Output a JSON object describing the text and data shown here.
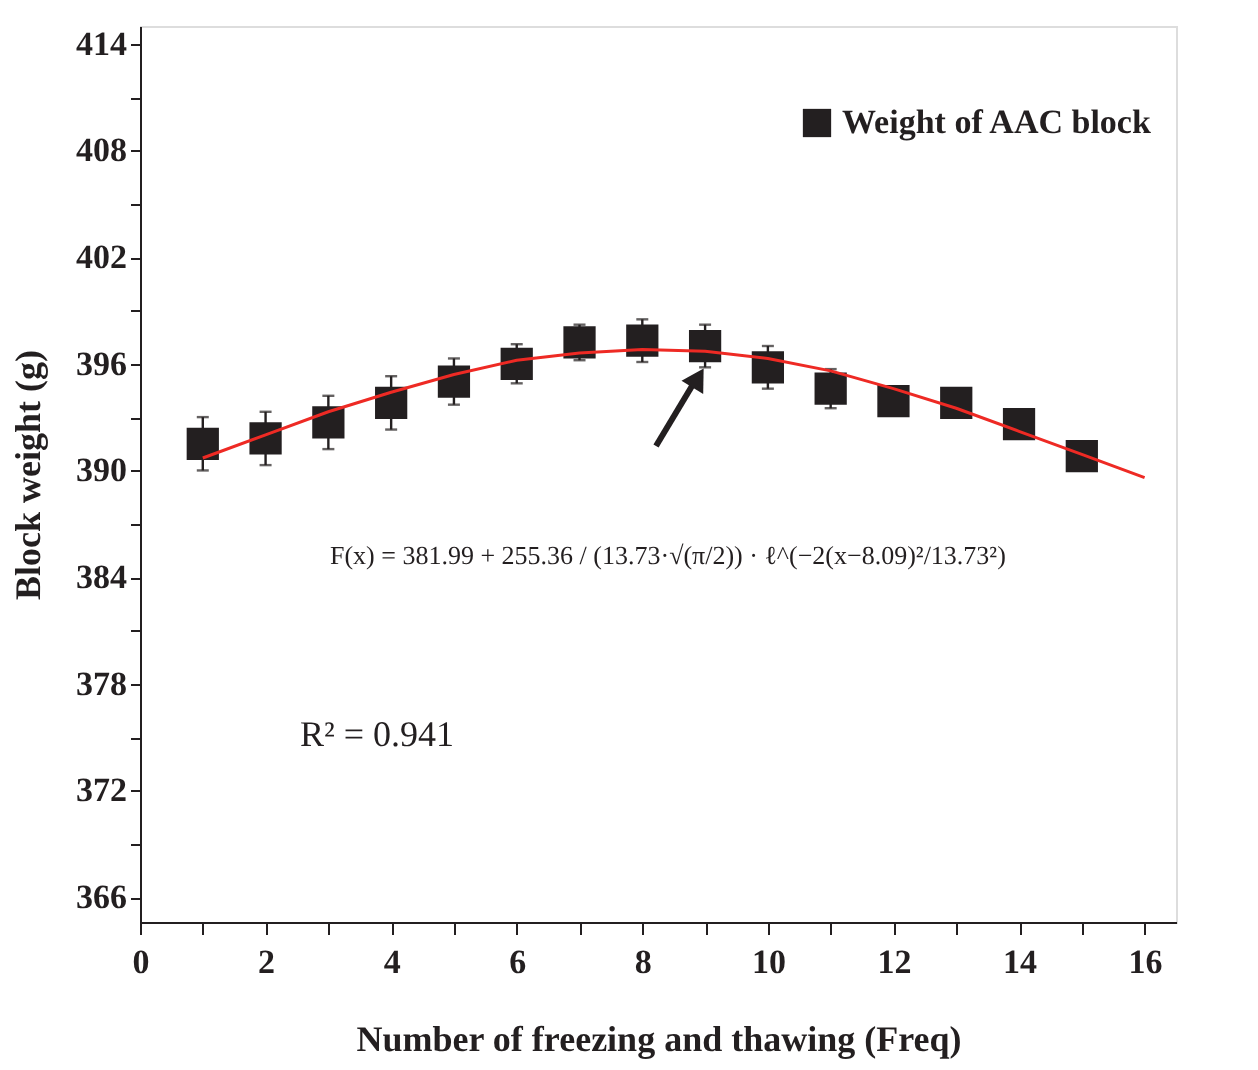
{
  "chart_data": {
    "type": "scatter",
    "xlabel": "Number of freezing and thawing (Freq)",
    "ylabel": "Block weight (g)",
    "xlim": [
      0,
      16.5
    ],
    "ylim": [
      364.6,
      415
    ],
    "xticks": [
      0,
      {
        "value": 1,
        "label": null
      },
      2,
      {
        "value": 3,
        "label": null
      },
      4,
      {
        "value": 5,
        "label": null
      },
      6,
      {
        "value": 7,
        "label": null
      },
      8,
      {
        "value": 9,
        "label": null
      },
      10,
      {
        "value": 11,
        "label": null
      },
      12,
      {
        "value": 13,
        "label": null
      },
      14,
      {
        "value": 15,
        "label": null
      },
      16
    ],
    "yticks": [
      366,
      {
        "value": 369,
        "label": null
      },
      372,
      {
        "value": 375,
        "label": null
      },
      378,
      {
        "value": 381,
        "label": null
      },
      384,
      {
        "value": 387,
        "label": null
      },
      390,
      {
        "value": 393,
        "label": null
      },
      396,
      {
        "value": 399,
        "label": null
      },
      402,
      {
        "value": 405,
        "label": null
      },
      408,
      {
        "value": 411,
        "label": null
      },
      414
    ],
    "marker": "square",
    "legend": "top right",
    "grid": false,
    "series": [
      {
        "name": "Weight of AAC block",
        "color": "#231f20",
        "x": [
          1,
          2,
          3,
          4,
          5,
          6,
          7,
          8,
          9,
          10,
          11,
          12,
          13,
          14,
          15
        ],
        "values": [
          391.5,
          391.8,
          392.7,
          393.8,
          395.0,
          396.0,
          397.2,
          397.3,
          397.0,
          395.8,
          394.6,
          393.9,
          393.8,
          392.6,
          390.8
        ],
        "errors": [
          1.5,
          1.5,
          1.5,
          1.5,
          1.3,
          1.1,
          1.0,
          1.2,
          1.2,
          1.2,
          1.1,
          0.8,
          0.8,
          null,
          null
        ]
      },
      {
        "type": "line",
        "marker": "none",
        "color": "#ee2a24",
        "x": [
          1,
          2,
          3,
          4,
          5,
          6,
          7,
          8,
          9,
          10,
          11,
          12,
          13,
          14,
          15,
          16
        ],
        "values": [
          390.7,
          392.0,
          393.3,
          394.4,
          395.4,
          396.2,
          396.6,
          396.8,
          396.7,
          396.3,
          395.6,
          394.6,
          393.5,
          392.2,
          390.9,
          389.6
        ]
      }
    ],
    "annotations": [
      "F(x) = 381.99 + 255.36 / (13.73·√(π/2)) · ℓ^(−2(x−8.09)²/13.73²)",
      "R² = 0.941"
    ]
  }
}
